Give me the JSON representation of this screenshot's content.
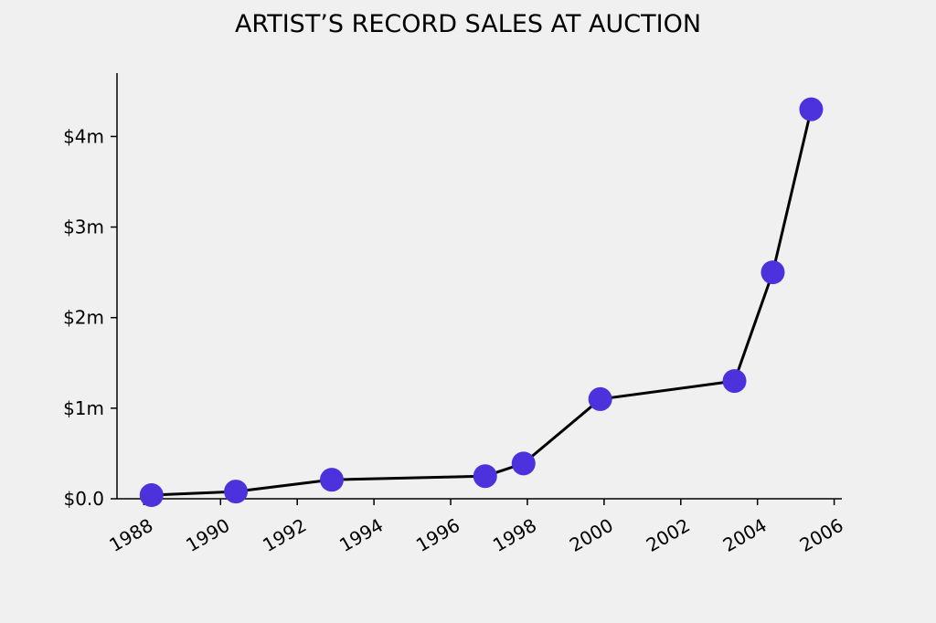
{
  "chart_data": {
    "type": "line",
    "title": "ARTIST’S RECORD SALES AT AUCTION",
    "xlabel": "",
    "ylabel": "",
    "x": [
      1988.2,
      1990.4,
      1992.9,
      1996.9,
      1997.9,
      1999.9,
      2003.4,
      2004.4,
      2005.4
    ],
    "y": [
      0.04,
      0.08,
      0.21,
      0.25,
      0.39,
      1.1,
      1.3,
      2.5,
      4.3
    ],
    "xlim": [
      1987.3,
      2006.2
    ],
    "ylim": [
      0,
      4.7
    ],
    "x_ticks": [
      1988,
      1990,
      1992,
      1994,
      1996,
      1998,
      2000,
      2002,
      2004,
      2006
    ],
    "x_tick_labels": [
      "1988",
      "1990",
      "1992",
      "1994",
      "1996",
      "1998",
      "2000",
      "2002",
      "2004",
      "2006"
    ],
    "y_ticks": [
      0,
      1,
      2,
      3,
      4
    ],
    "y_tick_labels": [
      "$0.0",
      "$1m",
      "$2m",
      "$3m",
      "$4m"
    ],
    "grid": false,
    "line_color": "#000000",
    "marker_color": "#4b32dc",
    "background": "#f0f0f0"
  }
}
